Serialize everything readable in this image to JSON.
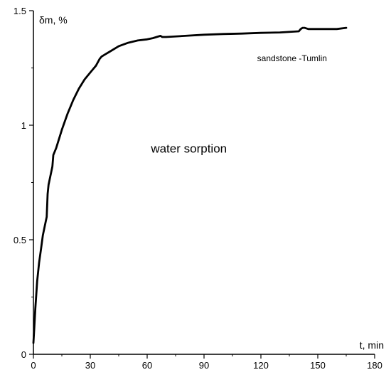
{
  "chart_data": {
    "type": "line",
    "xlabel": "t, min",
    "ylabel": "δm, %",
    "xlim": [
      0,
      180
    ],
    "ylim": [
      0,
      1.5
    ],
    "x_ticks": [
      0,
      30,
      60,
      90,
      120,
      150,
      180
    ],
    "y_ticks": [
      0,
      0.5,
      1,
      1.5
    ],
    "x_tick_labels": [
      "0",
      "30",
      "60",
      "90",
      "120",
      "150",
      "180"
    ],
    "y_tick_labels": [
      "0",
      "0.5",
      "1",
      "1.5"
    ],
    "grid": false,
    "annotations": [
      {
        "text": "sandstone -Tumlin",
        "x": 118,
        "y": 1.28,
        "size": "small"
      },
      {
        "text": "water sorption",
        "x": 62,
        "y": 0.88,
        "size": "big"
      }
    ],
    "series": [
      {
        "color": "#000000",
        "x": [
          0,
          0.5,
          1,
          1.5,
          2,
          3,
          4,
          5,
          6,
          7,
          7.5,
          8,
          10,
          10.5,
          12,
          15,
          18,
          21,
          24,
          27,
          30,
          33,
          35,
          36,
          38,
          40,
          45,
          50,
          55,
          60,
          63,
          65,
          67,
          68,
          70,
          80,
          90,
          100,
          110,
          120,
          130,
          140,
          141,
          142,
          143,
          145,
          150,
          155,
          160,
          165
        ],
        "y": [
          0.05,
          0.12,
          0.2,
          0.26,
          0.32,
          0.4,
          0.46,
          0.52,
          0.56,
          0.6,
          0.7,
          0.74,
          0.82,
          0.87,
          0.9,
          0.98,
          1.05,
          1.11,
          1.16,
          1.2,
          1.23,
          1.26,
          1.29,
          1.3,
          1.31,
          1.32,
          1.345,
          1.36,
          1.37,
          1.375,
          1.38,
          1.385,
          1.39,
          1.385,
          1.385,
          1.39,
          1.395,
          1.398,
          1.4,
          1.403,
          1.405,
          1.41,
          1.42,
          1.425,
          1.425,
          1.42,
          1.42,
          1.42,
          1.42,
          1.425
        ]
      }
    ]
  }
}
